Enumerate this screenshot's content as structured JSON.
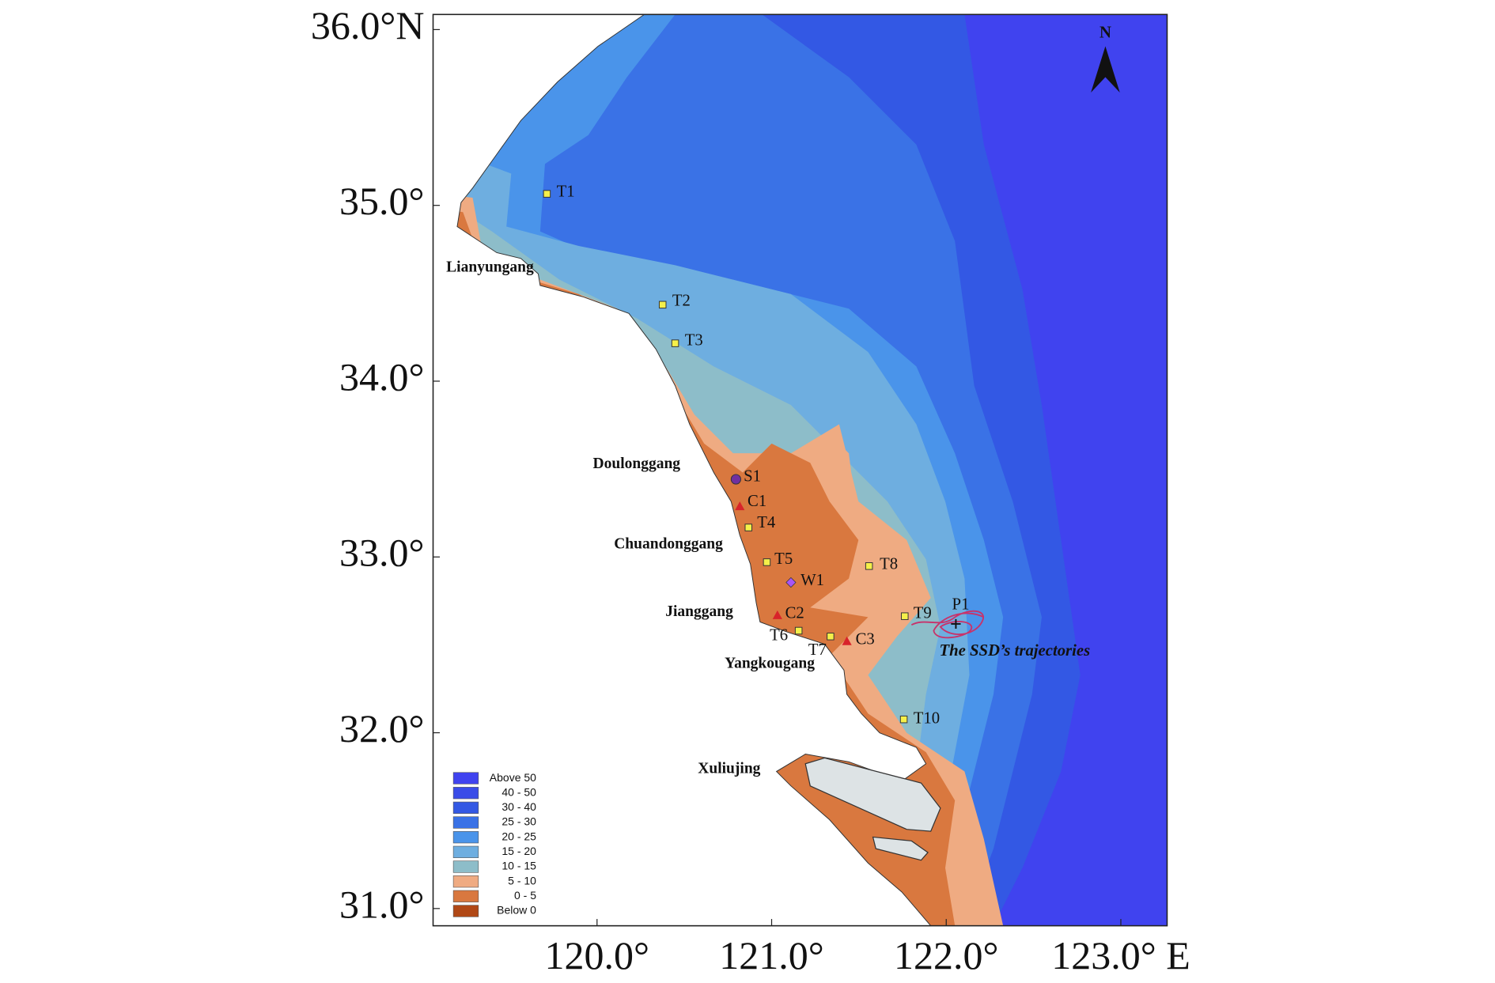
{
  "map": {
    "xlim": [
      119.061,
      123.265
    ],
    "ylim": [
      30.902,
      36.086
    ],
    "xticks": [
      {
        "value": 120,
        "label": "120.0°"
      },
      {
        "value": 121,
        "label": "121.0°"
      },
      {
        "value": 122,
        "label": "122.0°"
      },
      {
        "value": 123,
        "label": "123.0° E"
      }
    ],
    "yticks": [
      {
        "value": 36,
        "label": "36.0°N"
      },
      {
        "value": 35,
        "label": "35.0°"
      },
      {
        "value": 34,
        "label": "34.0°"
      },
      {
        "value": 33,
        "label": "33.0°"
      },
      {
        "value": 32,
        "label": "32.0°"
      },
      {
        "value": 31,
        "label": "31.0°"
      }
    ],
    "north": "N",
    "places": [
      "Lianyungang",
      "Doulonggang",
      "Chuandonggang",
      "Jianggang",
      "Yangkougang",
      "Xuliujing"
    ],
    "stations": [
      "T1",
      "T2",
      "T3",
      "S1",
      "C1",
      "T4",
      "T5",
      "W1",
      "T8",
      "C2",
      "T6",
      "T7",
      "C3",
      "T9",
      "P1",
      "T10"
    ],
    "trajectory_label": "The SSD’s trajectories",
    "legend": [
      {
        "label": "Above 50",
        "color": "#4043ef"
      },
      {
        "label": "40 - 50",
        "color": "#3a4ce8"
      },
      {
        "label": "30 - 40",
        "color": "#3358e4"
      },
      {
        "label": "25 - 30",
        "color": "#3a72e6"
      },
      {
        "label": "20 - 25",
        "color": "#4a94ea"
      },
      {
        "label": "15 - 20",
        "color": "#6eaee0"
      },
      {
        "label": "10 - 15",
        "color": "#8dbdc9"
      },
      {
        "label": "5 - 10",
        "color": "#efab82"
      },
      {
        "label": "0 - 5",
        "color": "#d9783f"
      },
      {
        "label": "Below 0",
        "color": "#b04816"
      }
    ]
  }
}
